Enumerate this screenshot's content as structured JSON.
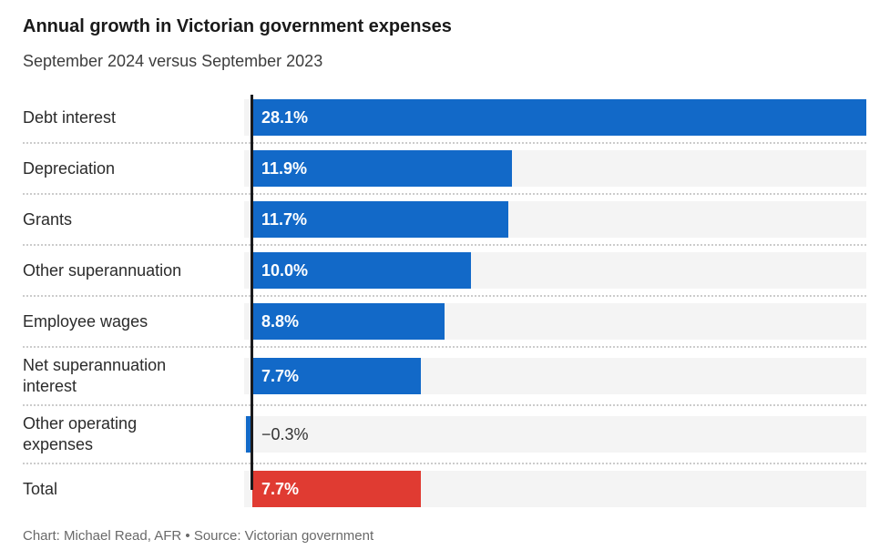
{
  "header": {
    "title": "Annual growth in Victorian government expenses",
    "subtitle": "September 2024 versus September 2023"
  },
  "footer": {
    "text": "Chart: Michael Read, AFR • Source: Victorian government"
  },
  "chart_data": {
    "type": "bar",
    "orientation": "horizontal",
    "title": "Annual growth in Victorian government expenses",
    "subtitle": "September 2024 versus September 2023",
    "xlabel": "",
    "ylabel": "",
    "xlim": [
      -0.375,
      28.1
    ],
    "grid": false,
    "legend": "none",
    "value_suffix": "%",
    "categories": [
      "Debt interest",
      "Depreciation",
      "Grants",
      "Other superannuation",
      "Employee wages",
      "Net superannuation\ninterest",
      "Other operating\nexpenses",
      "Total"
    ],
    "values": [
      28.1,
      11.9,
      11.7,
      10.0,
      8.8,
      7.7,
      -0.3,
      7.7
    ],
    "value_labels": [
      "28.1%",
      "11.9%",
      "11.7%",
      "10.0%",
      "8.8%",
      "7.7%",
      "−0.3%",
      "7.7%"
    ],
    "bar_colors": [
      "#1269c8",
      "#1269c8",
      "#1269c8",
      "#1269c8",
      "#1269c8",
      "#1269c8",
      "#1269c8",
      "#e03b32"
    ],
    "colors": {
      "bar_blue": "#1269c8",
      "bar_total_red": "#e03b32",
      "row_track": "#f4f4f4",
      "zero_axis": "#1a1a1c",
      "separator": "#cccccc",
      "value_inside_text": "#ffffff",
      "value_outside_text": "#333333"
    }
  }
}
